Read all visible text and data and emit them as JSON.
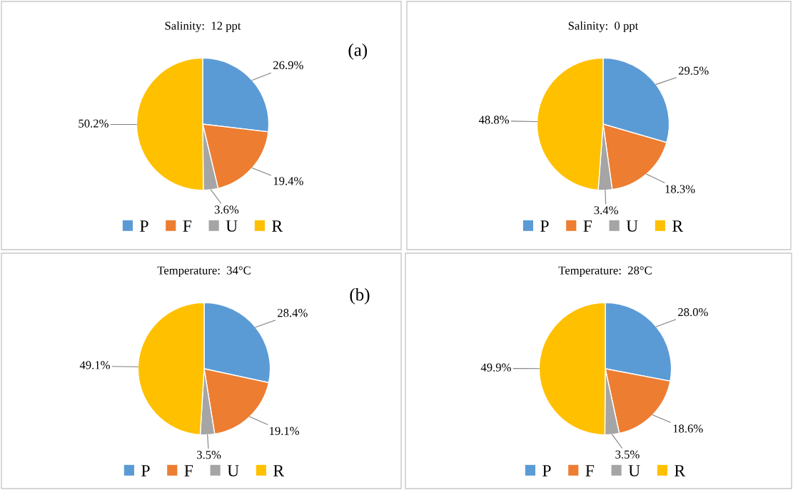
{
  "chart_data": [
    {
      "type": "pie",
      "title": "Salinity:  12 ppt",
      "categories": [
        "P",
        "F",
        "U",
        "R"
      ],
      "values": [
        26.9,
        19.4,
        3.6,
        50.2
      ],
      "colors": [
        "#5b9bd5",
        "#ed7d31",
        "#a5a5a5",
        "#ffc000"
      ],
      "value_labels": [
        "26.9%",
        "19.4%",
        "3.6%",
        "50.2%"
      ],
      "legend": "bottom",
      "annotations": [
        "(a)"
      ]
    },
    {
      "type": "pie",
      "title": "Salinity:  0 ppt",
      "categories": [
        "P",
        "F",
        "U",
        "R"
      ],
      "values": [
        29.5,
        18.3,
        3.4,
        48.8
      ],
      "colors": [
        "#5b9bd5",
        "#ed7d31",
        "#a5a5a5",
        "#ffc000"
      ],
      "value_labels": [
        "29.5%",
        "18.3%",
        "3.4%",
        "48.8%"
      ],
      "legend": "bottom"
    },
    {
      "type": "pie",
      "title": "Temperature:  34°C",
      "categories": [
        "P",
        "F",
        "U",
        "R"
      ],
      "values": [
        28.4,
        19.1,
        3.5,
        49.1
      ],
      "colors": [
        "#5b9bd5",
        "#ed7d31",
        "#a5a5a5",
        "#ffc000"
      ],
      "value_labels": [
        "28.4%",
        "19.1%",
        "3.5%",
        "49.1%"
      ],
      "legend": "bottom",
      "annotations": [
        "(b)"
      ]
    },
    {
      "type": "pie",
      "title": "Temperature:  28°C",
      "categories": [
        "P",
        "F",
        "U",
        "R"
      ],
      "values": [
        28.0,
        18.6,
        3.5,
        49.9
      ],
      "colors": [
        "#5b9bd5",
        "#ed7d31",
        "#a5a5a5",
        "#ffc000"
      ],
      "value_labels": [
        "28.0%",
        "18.6%",
        "3.5%",
        "49.9%"
      ],
      "legend": "bottom"
    }
  ]
}
